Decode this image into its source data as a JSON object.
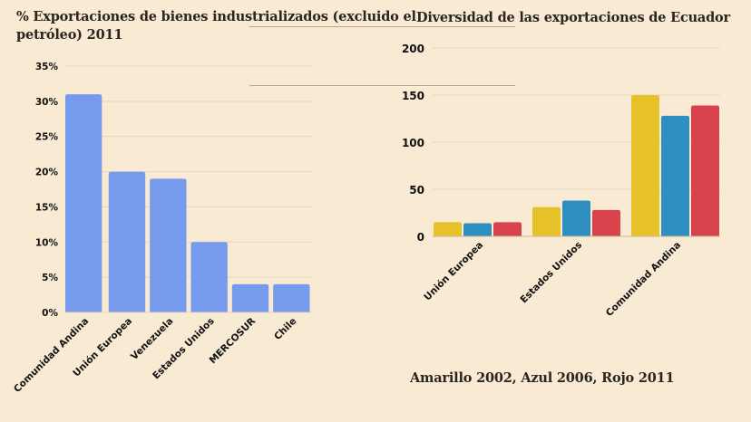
{
  "page": {
    "left_title": "% Exportaciones de bienes industrializados (excluido el petróleo) 2011",
    "right_title": "Diversidad de las exportaciones de Ecuador",
    "legend_note": "Amarillo 2002, Azul 2006, Rojo 2011"
  },
  "chart_data": [
    {
      "type": "bar",
      "title": "% Exportaciones de bienes industrializados (excluido el petróleo) 2011",
      "xlabel": "",
      "ylabel": "",
      "categories": [
        "Comunidad Andina",
        "Unión Europea",
        "Venezuela",
        "Estados Unidos",
        "MERCOSUR",
        "Chile"
      ],
      "values": [
        31,
        20,
        19,
        10,
        4,
        4
      ],
      "value_format": "percent",
      "ylim": [
        0,
        35
      ],
      "yticks": [
        0,
        5,
        10,
        15,
        20,
        25,
        30,
        35
      ],
      "ytick_labels": [
        "0%",
        "5%",
        "10%",
        "15%",
        "20%",
        "25%",
        "30%",
        "35%"
      ],
      "grid": true,
      "bar_color": "#779bec"
    },
    {
      "type": "bar",
      "title": "Diversidad de las exportaciones de Ecuador",
      "xlabel": "",
      "ylabel": "",
      "categories": [
        "Unión Europea",
        "Estados Unidos",
        "Comunidad Andina"
      ],
      "series": [
        {
          "name": "2002",
          "color": "#e6c12a",
          "values": [
            15,
            31,
            150
          ]
        },
        {
          "name": "2006",
          "color": "#2e8ec0",
          "values": [
            14,
            38,
            128
          ]
        },
        {
          "name": "2011",
          "color": "#d9434b",
          "values": [
            15,
            28,
            139
          ]
        }
      ],
      "ylim": [
        0,
        200
      ],
      "yticks": [
        0,
        50,
        100,
        150,
        200
      ],
      "ytick_labels": [
        "0",
        "50",
        "100",
        "150",
        "200"
      ],
      "grid": true,
      "annotation": "Amarillo 2002, Azul 2006, Rojo 2011"
    }
  ]
}
